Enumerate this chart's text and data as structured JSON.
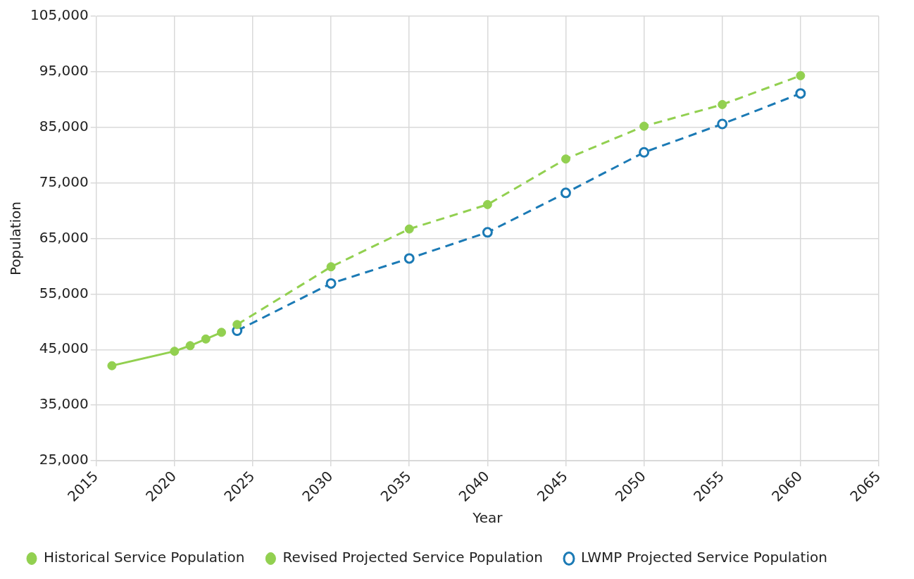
{
  "chart_data": {
    "type": "line",
    "xlabel": "Year",
    "ylabel": "Population",
    "xlim": [
      2015,
      2065
    ],
    "xticks": [
      2015,
      2020,
      2025,
      2030,
      2035,
      2040,
      2045,
      2050,
      2055,
      2060,
      2065
    ],
    "ylim": [
      25000,
      105000
    ],
    "yticks": [
      {
        "value": 25000,
        "label": "25,000"
      },
      {
        "value": 35000,
        "label": "35,000"
      },
      {
        "value": 45000,
        "label": "45,000"
      },
      {
        "value": 55000,
        "label": "55,000"
      },
      {
        "value": 65000,
        "label": "65,000"
      },
      {
        "value": 75000,
        "label": "75,000"
      },
      {
        "value": 85000,
        "label": "85,000"
      },
      {
        "value": 95000,
        "label": "95,000"
      },
      {
        "value": 105000,
        "label": "105,000"
      }
    ],
    "grid": true,
    "legend": "bottom",
    "series": [
      {
        "name": "Historical Service Population",
        "color": "#92d050",
        "line_style": "solid",
        "marker": "circle",
        "x": [
          2016,
          2020,
          2021,
          2022,
          2023
        ],
        "values": [
          42100,
          44700,
          45700,
          46900,
          48100
        ]
      },
      {
        "name": "Revised Projected Service Population",
        "color": "#92d050",
        "line_style": "dashed",
        "marker": "circle",
        "x": [
          2024,
          2030,
          2035,
          2040,
          2045,
          2050,
          2055,
          2060
        ],
        "values": [
          49500,
          59900,
          66700,
          71100,
          79300,
          85200,
          89100,
          94300
        ]
      },
      {
        "name": "LWMP Projected Service Population",
        "color": "#1b7ab5",
        "line_style": "dashed",
        "marker": "hollow-circle",
        "x": [
          2024,
          2030,
          2035,
          2040,
          2045,
          2050,
          2055,
          2060
        ],
        "values": [
          48400,
          56900,
          61400,
          66100,
          73200,
          80500,
          85600,
          91100
        ]
      }
    ]
  }
}
